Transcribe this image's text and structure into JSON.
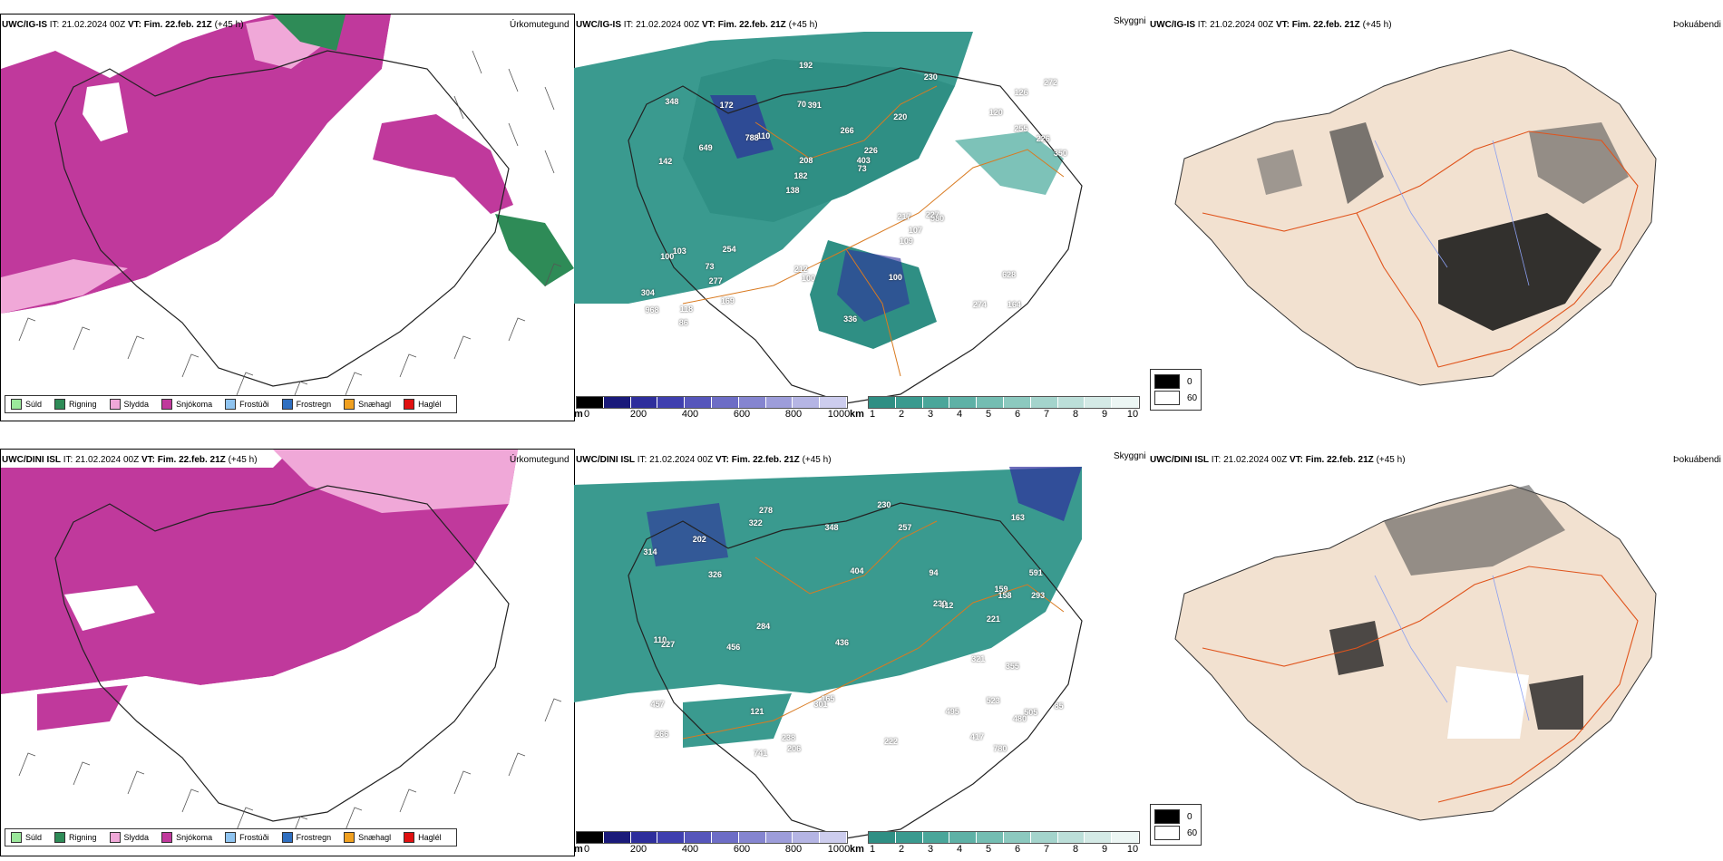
{
  "rows": [
    {
      "model": "UWC/IG-IS",
      "time_text": "IT: 21.02.2024 00Z",
      "vt_label": "VT: Fim. 22.feb. 21Z",
      "lead": "(+45 h)"
    },
    {
      "model": "UWC/DINI ISL",
      "time_text": "IT: 21.02.2024 00Z",
      "vt_label": "VT: Fim. 22.feb. 21Z",
      "lead": "(+45 h)"
    }
  ],
  "panel_titles": {
    "precip": "Úrkomutegund",
    "visibility": "Skyggni",
    "fog": "Þokuábendi"
  },
  "precip_legend": [
    {
      "label": "Súld",
      "color": "#9be89b"
    },
    {
      "label": "Rigning",
      "color": "#2e8b57"
    },
    {
      "label": "Slydda",
      "color": "#f0a8d8"
    },
    {
      "label": "Snjókoma",
      "color": "#c0399c"
    },
    {
      "label": "Frostúði",
      "color": "#8fc4f0"
    },
    {
      "label": "Frostregn",
      "color": "#2f6fc0"
    },
    {
      "label": "Snæhagl",
      "color": "#f0a020"
    },
    {
      "label": "Haglél",
      "color": "#e01010"
    }
  ],
  "vis_colorbar": {
    "m_unit": "m",
    "m_ticks": [
      "0",
      "200",
      "400",
      "600",
      "800",
      "1000"
    ],
    "km_unit": "km",
    "km_ticks": [
      "1",
      "2",
      "3",
      "4",
      "5",
      "6",
      "7",
      "8",
      "9",
      "10"
    ]
  },
  "fog_legend": [
    {
      "label": "0",
      "color": "#000000"
    },
    {
      "label": "60",
      "color": "#ffffff"
    }
  ],
  "vis_labels_top": [
    "164",
    "142",
    "126",
    "138",
    "220",
    "118",
    "70",
    "266",
    "103",
    "110",
    "304",
    "277",
    "391",
    "226",
    "980",
    "348",
    "192",
    "350",
    "217",
    "255",
    "182",
    "212",
    "208",
    "172",
    "230",
    "254",
    "274",
    "628",
    "227",
    "336",
    "788",
    "649",
    "109",
    "169",
    "226",
    "403",
    "968",
    "100",
    "73",
    "100",
    "120",
    "272",
    "107",
    "100",
    "73",
    "86"
  ],
  "vis_labels_bottom": [
    "523",
    "591",
    "505",
    "404",
    "266",
    "278",
    "159",
    "121",
    "163",
    "326",
    "293",
    "314",
    "221",
    "206",
    "457",
    "202",
    "480",
    "322",
    "165",
    "158",
    "110",
    "227",
    "222",
    "230",
    "238",
    "301",
    "230",
    "257",
    "94",
    "85",
    "456",
    "495",
    "741",
    "436",
    "355",
    "417",
    "412",
    "348",
    "780",
    "284",
    "321"
  ]
}
